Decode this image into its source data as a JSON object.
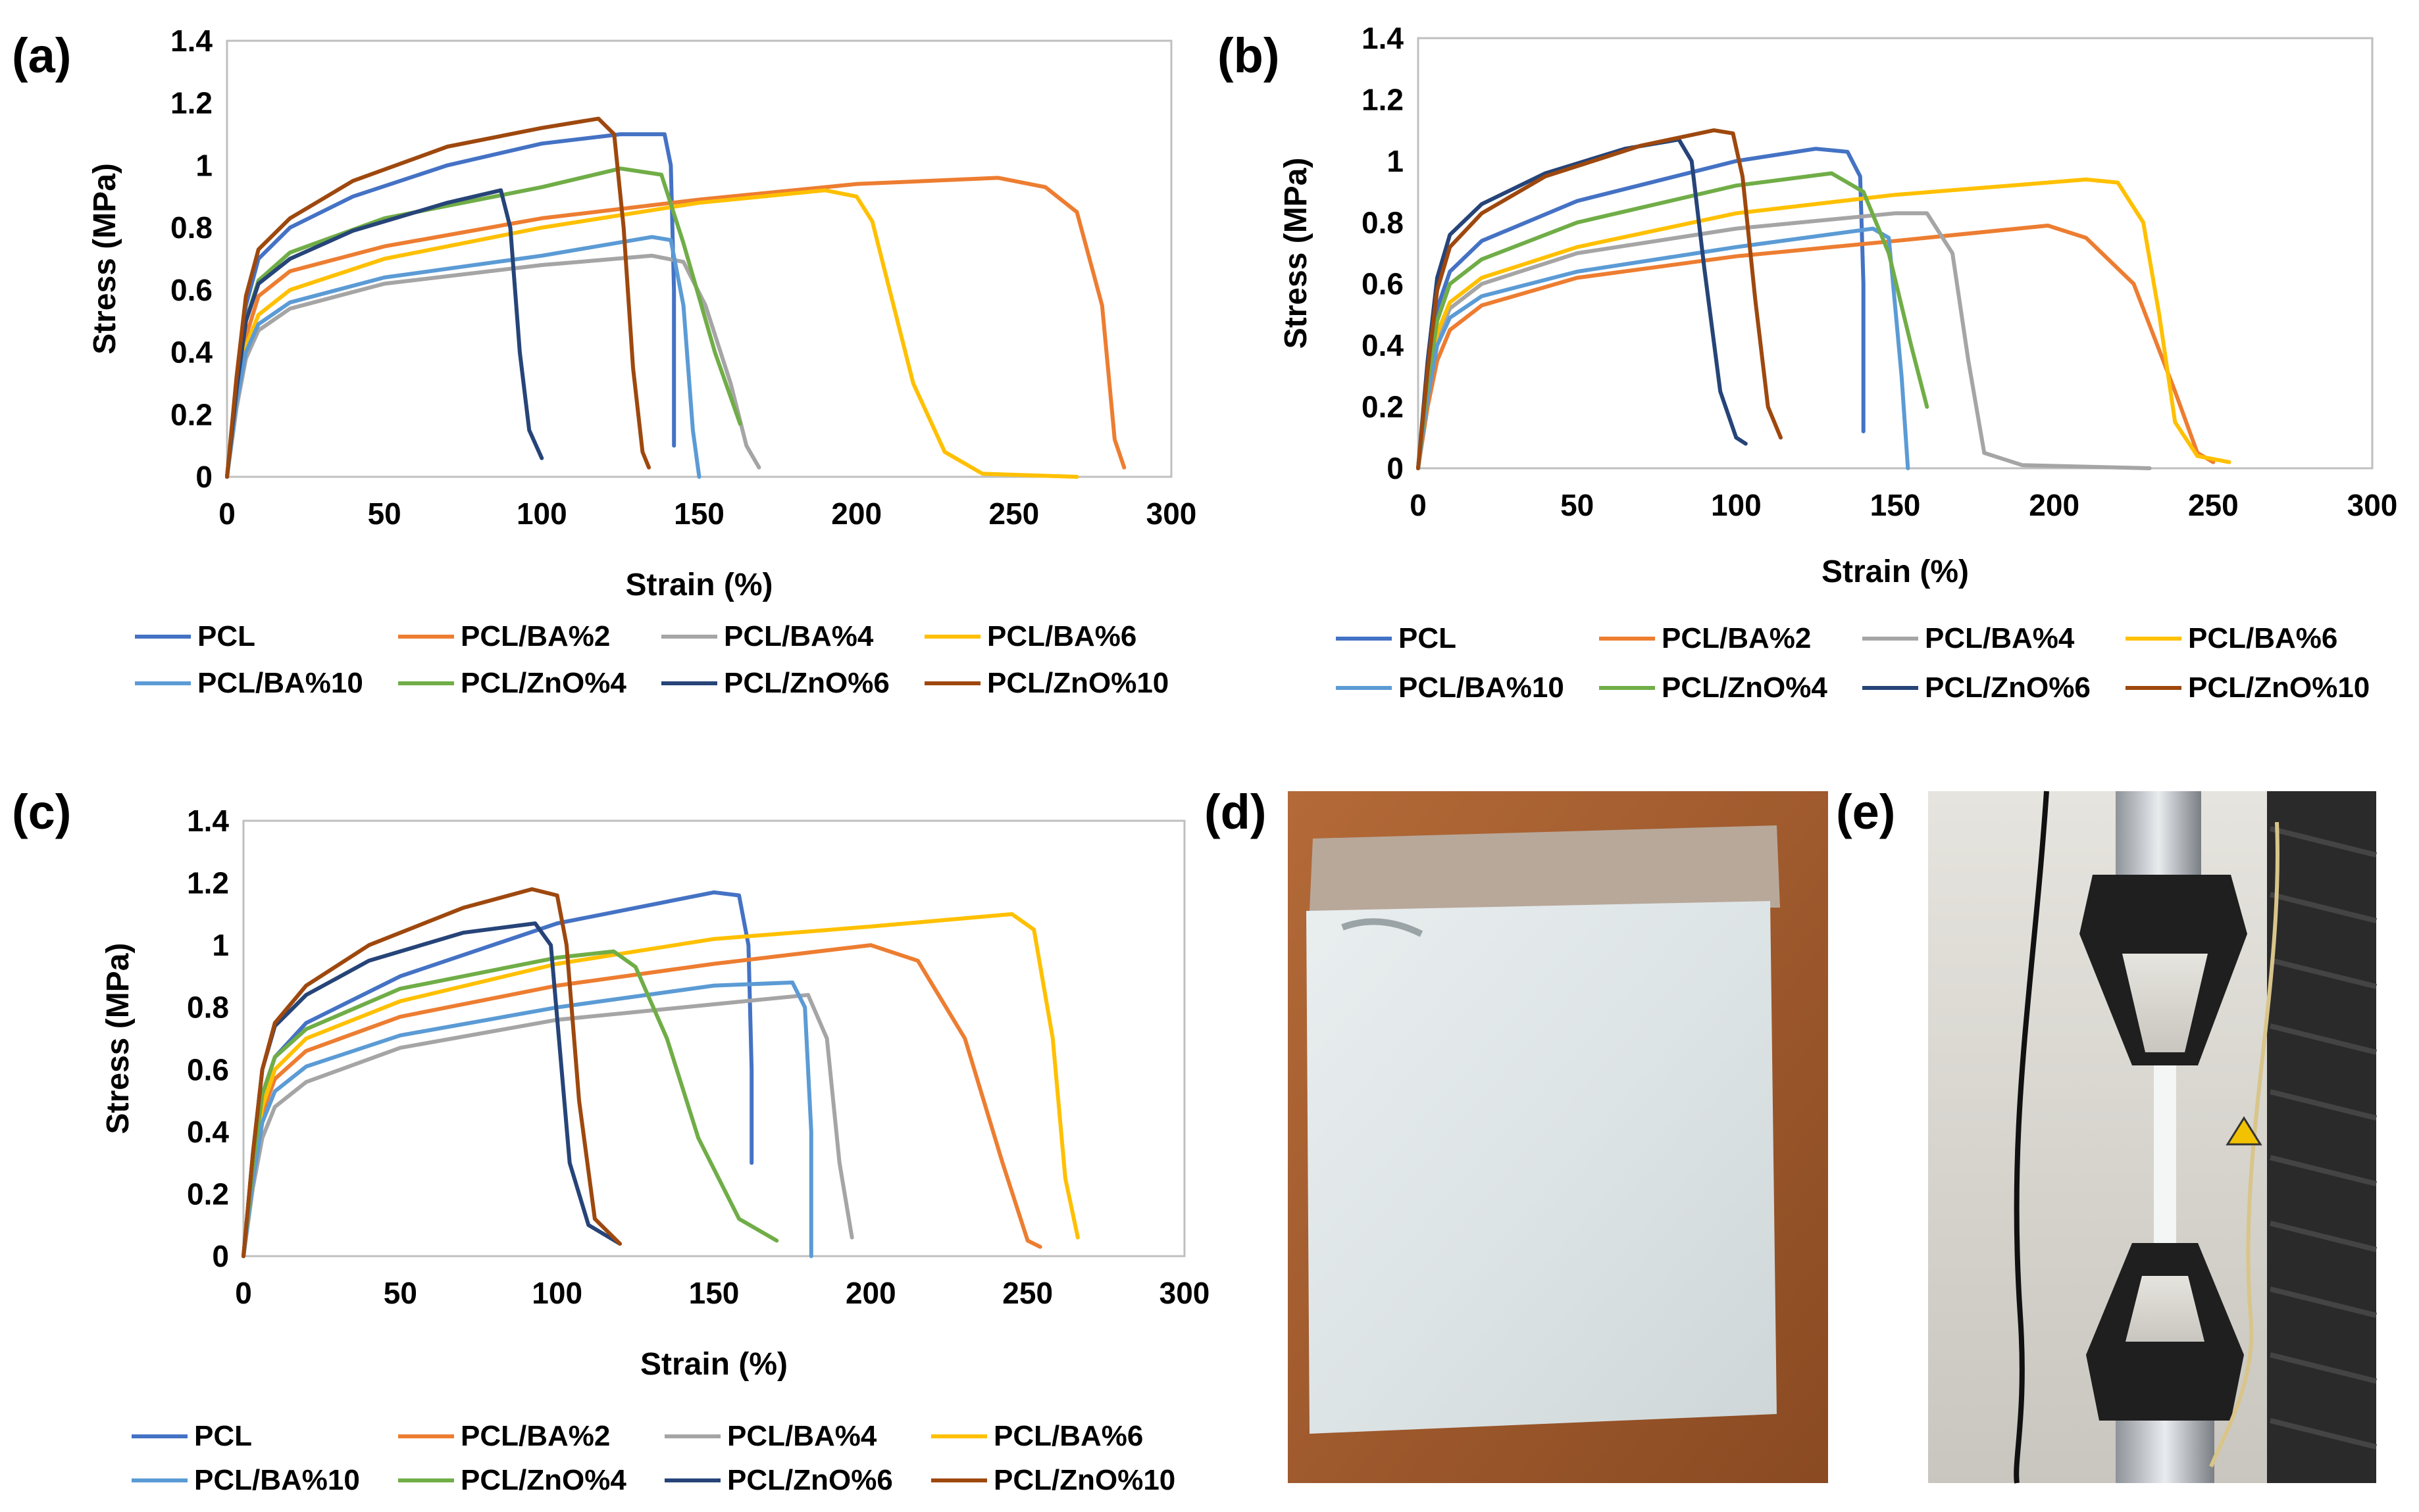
{
  "panels": {
    "a": "(a)",
    "b": "(b)",
    "c": "(c)",
    "d": "(d)",
    "e": "(e)"
  },
  "colors": {
    "PCL": "#4472c4",
    "PCL/BA%2": "#ed7d31",
    "PCL/BA%4": "#a5a5a5",
    "PCL/BA%6": "#ffc000",
    "PCL/BA%10": "#5b9bd5",
    "PCL/ZnO%4": "#70ad47",
    "PCL/ZnO%6": "#264478",
    "PCL/ZnO%10": "#9e480e"
  },
  "photos": {
    "d": "white composite film sample on brown backing",
    "e": "tensile testing machine grips holding specimen"
  },
  "chart_data": [
    {
      "id": "a",
      "type": "line",
      "xlabel": "Strain (%)",
      "ylabel": "Stress (MPa)",
      "xlim": [
        0,
        300
      ],
      "ylim": [
        0,
        1.4
      ],
      "xticks": [
        0,
        50,
        100,
        150,
        200,
        250,
        300
      ],
      "yticks": [
        0,
        0.2,
        0.4,
        0.6,
        0.8,
        1,
        1.2,
        1.4
      ],
      "legend": [
        "PCL",
        "PCL/BA%2",
        "PCL/BA%4",
        "PCL/BA%6",
        "PCL/BA%10",
        "PCL/ZnO%4",
        "PCL/ZnO%6",
        "PCL/ZnO%10"
      ],
      "series": [
        {
          "name": "PCL",
          "x": [
            0,
            3,
            6,
            10,
            20,
            40,
            70,
            100,
            125,
            139,
            141,
            142,
            142
          ],
          "y": [
            0,
            0.3,
            0.55,
            0.7,
            0.8,
            0.9,
            1.0,
            1.07,
            1.1,
            1.1,
            1.0,
            0.6,
            0.1
          ]
        },
        {
          "name": "PCL/BA%2",
          "x": [
            0,
            3,
            6,
            10,
            20,
            50,
            100,
            150,
            200,
            245,
            260,
            270,
            278,
            282,
            285
          ],
          "y": [
            0,
            0.25,
            0.45,
            0.58,
            0.66,
            0.74,
            0.83,
            0.89,
            0.94,
            0.96,
            0.93,
            0.85,
            0.55,
            0.12,
            0.03
          ]
        },
        {
          "name": "PCL/BA%4",
          "x": [
            0,
            3,
            6,
            10,
            20,
            50,
            100,
            135,
            145,
            152,
            160,
            165,
            169
          ],
          "y": [
            0,
            0.22,
            0.38,
            0.47,
            0.54,
            0.62,
            0.68,
            0.71,
            0.69,
            0.55,
            0.3,
            0.1,
            0.03
          ]
        },
        {
          "name": "PCL/BA%6",
          "x": [
            0,
            3,
            6,
            10,
            20,
            50,
            100,
            150,
            190,
            200,
            205,
            210,
            218,
            228,
            240,
            270
          ],
          "y": [
            0,
            0.24,
            0.42,
            0.52,
            0.6,
            0.7,
            0.8,
            0.88,
            0.92,
            0.9,
            0.82,
            0.62,
            0.3,
            0.08,
            0.01,
            0.0
          ]
        },
        {
          "name": "PCL/BA%10",
          "x": [
            0,
            3,
            6,
            10,
            20,
            50,
            100,
            135,
            141,
            145,
            148,
            150
          ],
          "y": [
            0,
            0.24,
            0.4,
            0.49,
            0.56,
            0.64,
            0.71,
            0.77,
            0.76,
            0.55,
            0.15,
            0.0
          ]
        },
        {
          "name": "PCL/ZnO%4",
          "x": [
            0,
            3,
            6,
            10,
            20,
            50,
            100,
            125,
            138,
            145,
            155,
            163
          ],
          "y": [
            0,
            0.28,
            0.5,
            0.63,
            0.72,
            0.83,
            0.93,
            0.99,
            0.97,
            0.75,
            0.4,
            0.17
          ]
        },
        {
          "name": "PCL/ZnO%6",
          "x": [
            0,
            3,
            6,
            10,
            20,
            40,
            70,
            87,
            90,
            93,
            96,
            100
          ],
          "y": [
            0,
            0.28,
            0.5,
            0.62,
            0.7,
            0.79,
            0.88,
            0.92,
            0.8,
            0.4,
            0.15,
            0.06
          ]
        },
        {
          "name": "PCL/ZnO%10",
          "x": [
            0,
            3,
            6,
            10,
            20,
            40,
            70,
            100,
            118,
            123,
            126,
            129,
            132,
            134
          ],
          "y": [
            0,
            0.32,
            0.58,
            0.73,
            0.83,
            0.95,
            1.06,
            1.12,
            1.15,
            1.1,
            0.8,
            0.35,
            0.08,
            0.03
          ]
        }
      ]
    },
    {
      "id": "b",
      "type": "line",
      "xlabel": "Strain (%)",
      "ylabel": "Stress (MPa)",
      "xlim": [
        0,
        300
      ],
      "ylim": [
        0,
        1.4
      ],
      "xticks": [
        0,
        50,
        100,
        150,
        200,
        250,
        300
      ],
      "yticks": [
        0,
        0.2,
        0.4,
        0.6,
        0.8,
        1,
        1.2,
        1.4
      ],
      "legend": [
        "PCL",
        "PCL/BA%2",
        "PCL/BA%4",
        "PCL/BA%6",
        "PCL/BA%10",
        "PCL/ZnO%4",
        "PCL/ZnO%6",
        "PCL/ZnO%10"
      ],
      "series": [
        {
          "name": "PCL",
          "x": [
            0,
            3,
            6,
            10,
            20,
            50,
            100,
            125,
            135,
            139,
            140,
            140
          ],
          "y": [
            0,
            0.3,
            0.52,
            0.64,
            0.74,
            0.87,
            1.0,
            1.04,
            1.03,
            0.95,
            0.6,
            0.12
          ]
        },
        {
          "name": "PCL/BA%2",
          "x": [
            0,
            3,
            6,
            10,
            20,
            50,
            100,
            150,
            198,
            210,
            225,
            238,
            245,
            250
          ],
          "y": [
            0,
            0.2,
            0.35,
            0.45,
            0.53,
            0.62,
            0.69,
            0.74,
            0.79,
            0.75,
            0.6,
            0.25,
            0.05,
            0.02
          ]
        },
        {
          "name": "PCL/BA%4",
          "x": [
            0,
            3,
            6,
            10,
            20,
            50,
            100,
            150,
            160,
            168,
            173,
            178,
            190,
            230
          ],
          "y": [
            0,
            0.24,
            0.42,
            0.52,
            0.6,
            0.7,
            0.78,
            0.83,
            0.83,
            0.7,
            0.35,
            0.05,
            0.01,
            0.0
          ]
        },
        {
          "name": "PCL/BA%6",
          "x": [
            0,
            3,
            6,
            10,
            20,
            50,
            100,
            150,
            210,
            220,
            228,
            233,
            238,
            245,
            255
          ],
          "y": [
            0,
            0.25,
            0.44,
            0.54,
            0.62,
            0.72,
            0.83,
            0.89,
            0.94,
            0.93,
            0.8,
            0.5,
            0.15,
            0.04,
            0.02
          ]
        },
        {
          "name": "PCL/BA%10",
          "x": [
            0,
            3,
            6,
            10,
            20,
            50,
            100,
            143,
            148,
            152,
            154
          ],
          "y": [
            0,
            0.23,
            0.4,
            0.49,
            0.56,
            0.64,
            0.72,
            0.78,
            0.75,
            0.3,
            0.0
          ]
        },
        {
          "name": "PCL/ZnO%4",
          "x": [
            0,
            3,
            6,
            10,
            20,
            50,
            100,
            130,
            140,
            148,
            155,
            160
          ],
          "y": [
            0,
            0.28,
            0.48,
            0.6,
            0.68,
            0.8,
            0.92,
            0.96,
            0.9,
            0.7,
            0.4,
            0.2
          ]
        },
        {
          "name": "PCL/ZnO%6",
          "x": [
            0,
            3,
            6,
            10,
            20,
            40,
            65,
            82,
            86,
            90,
            95,
            100,
            103
          ],
          "y": [
            0,
            0.35,
            0.62,
            0.76,
            0.86,
            0.96,
            1.04,
            1.07,
            1.0,
            0.65,
            0.25,
            0.1,
            0.08
          ]
        },
        {
          "name": "PCL/ZnO%10",
          "x": [
            0,
            3,
            6,
            10,
            20,
            40,
            70,
            93,
            99,
            102,
            106,
            110,
            114
          ],
          "y": [
            0,
            0.32,
            0.58,
            0.72,
            0.83,
            0.95,
            1.05,
            1.1,
            1.09,
            0.95,
            0.55,
            0.2,
            0.1
          ]
        }
      ]
    },
    {
      "id": "c",
      "type": "line",
      "xlabel": "Strain (%)",
      "ylabel": "Stress (MPa)",
      "xlim": [
        0,
        300
      ],
      "ylim": [
        0,
        1.4
      ],
      "xticks": [
        0,
        50,
        100,
        150,
        200,
        250,
        300
      ],
      "yticks": [
        0,
        0.2,
        0.4,
        0.6,
        0.8,
        1,
        1.2,
        1.4
      ],
      "legend": [
        "PCL",
        "PCL/BA%2",
        "PCL/BA%4",
        "PCL/BA%6",
        "PCL/BA%10",
        "PCL/ZnO%4",
        "PCL/ZnO%6",
        "PCL/ZnO%10"
      ],
      "series": [
        {
          "name": "PCL",
          "x": [
            0,
            3,
            6,
            10,
            20,
            50,
            100,
            150,
            158,
            161,
            162,
            162
          ],
          "y": [
            0,
            0.3,
            0.52,
            0.64,
            0.75,
            0.9,
            1.07,
            1.17,
            1.16,
            1.0,
            0.6,
            0.3
          ]
        },
        {
          "name": "PCL/BA%2",
          "x": [
            0,
            3,
            6,
            10,
            20,
            50,
            100,
            150,
            200,
            215,
            230,
            242,
            250,
            254
          ],
          "y": [
            0,
            0.26,
            0.46,
            0.57,
            0.66,
            0.77,
            0.87,
            0.94,
            1.0,
            0.95,
            0.7,
            0.3,
            0.05,
            0.03
          ]
        },
        {
          "name": "PCL/BA%4",
          "x": [
            0,
            3,
            6,
            10,
            20,
            50,
            100,
            150,
            180,
            186,
            190,
            194
          ],
          "y": [
            0,
            0.22,
            0.38,
            0.48,
            0.56,
            0.67,
            0.76,
            0.81,
            0.84,
            0.7,
            0.3,
            0.06
          ]
        },
        {
          "name": "PCL/BA%6",
          "x": [
            0,
            3,
            6,
            10,
            20,
            50,
            100,
            150,
            200,
            245,
            252,
            258,
            262,
            266
          ],
          "y": [
            0,
            0.27,
            0.48,
            0.6,
            0.7,
            0.82,
            0.94,
            1.02,
            1.06,
            1.1,
            1.05,
            0.7,
            0.25,
            0.06
          ]
        },
        {
          "name": "PCL/BA%10",
          "x": [
            0,
            3,
            6,
            10,
            20,
            50,
            100,
            150,
            175,
            179,
            181,
            181
          ],
          "y": [
            0,
            0.24,
            0.43,
            0.53,
            0.61,
            0.71,
            0.8,
            0.87,
            0.88,
            0.8,
            0.4,
            0.0
          ]
        },
        {
          "name": "PCL/ZnO%4",
          "x": [
            0,
            3,
            6,
            10,
            20,
            50,
            100,
            118,
            125,
            135,
            145,
            158,
            170
          ],
          "y": [
            0,
            0.29,
            0.52,
            0.64,
            0.73,
            0.86,
            0.96,
            0.98,
            0.93,
            0.7,
            0.38,
            0.12,
            0.05
          ]
        },
        {
          "name": "PCL/ZnO%6",
          "x": [
            0,
            3,
            6,
            10,
            20,
            40,
            70,
            93,
            98,
            101,
            104,
            110,
            120
          ],
          "y": [
            0,
            0.33,
            0.6,
            0.74,
            0.84,
            0.95,
            1.04,
            1.07,
            1.0,
            0.65,
            0.3,
            0.1,
            0.04
          ]
        },
        {
          "name": "PCL/ZnO%10",
          "x": [
            0,
            3,
            6,
            10,
            20,
            40,
            70,
            92,
            100,
            103,
            107,
            112,
            120
          ],
          "y": [
            0,
            0.33,
            0.6,
            0.75,
            0.87,
            1.0,
            1.12,
            1.18,
            1.16,
            1.0,
            0.5,
            0.12,
            0.04
          ]
        }
      ]
    }
  ]
}
